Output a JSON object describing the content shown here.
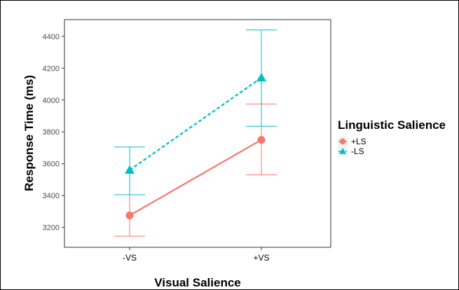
{
  "chart_data": {
    "type": "line",
    "xlabel": "Visual Salience",
    "ylabel": "Response Time (ms)",
    "categories": [
      "-VS",
      "+VS"
    ],
    "ylim": [
      3075,
      4505
    ],
    "yticks": [
      3200,
      3400,
      3600,
      3800,
      4000,
      4200,
      4400
    ],
    "grid": false,
    "legend": {
      "title": "Linguistic Salience",
      "placement": "right"
    },
    "series": [
      {
        "name": "+LS",
        "color": "#f8766d",
        "line_style": "solid",
        "marker": "circle",
        "values": [
          3275,
          3750
        ],
        "error_low": [
          3145,
          3530
        ],
        "error_high": [
          3405,
          3975
        ]
      },
      {
        "name": "-LS",
        "color": "#00bfc4",
        "line_style": "dashed",
        "marker": "triangle",
        "values": [
          3560,
          4140
        ],
        "error_low": [
          3405,
          3835
        ],
        "error_high": [
          3705,
          4440
        ]
      }
    ]
  }
}
